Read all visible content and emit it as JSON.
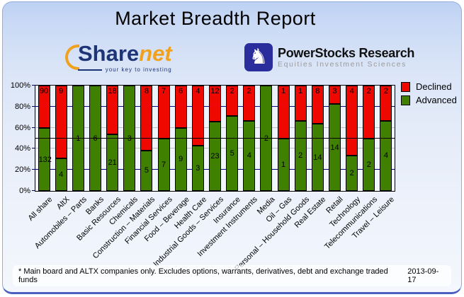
{
  "header": {
    "title": "Market Breadth Report"
  },
  "logos": {
    "sharenet": {
      "word_part1": "Share",
      "word_part2": "net",
      "tagline": "your key to investing"
    },
    "powerstocks": {
      "line1": "PowerStocks  Research",
      "line2": "Equities Investment Sciences",
      "icon": "knight-icon",
      "knight_glyph": "♞"
    }
  },
  "chart_data": {
    "type": "bar",
    "stacked": true,
    "categories": [
      "All share",
      "AltX",
      "Automobiles – Parts",
      "Banks",
      "Basic Resources",
      "Chemicals",
      "Construction – Materials",
      "Financial Services",
      "Food – Beverage",
      "Health Care",
      "Industrial Goods – Services",
      "Insurance",
      "Investment Instruments",
      "Media",
      "Oil – Gas",
      "Personal – Household Goods",
      "Real Estate",
      "Retail",
      "Technology",
      "Telecommunications",
      "Travel – Leisure"
    ],
    "series": [
      {
        "name": "Declined",
        "color": "#ee0800",
        "values": [
          90,
          9,
          0,
          0,
          18,
          0,
          8,
          7,
          6,
          4,
          12,
          2,
          2,
          0,
          1,
          1,
          8,
          3,
          4,
          2,
          2
        ]
      },
      {
        "name": "Advanced",
        "color": "#3f8000",
        "values": [
          132,
          4,
          1,
          6,
          21,
          3,
          5,
          7,
          9,
          3,
          23,
          5,
          4,
          2,
          1,
          2,
          14,
          14,
          2,
          2,
          4
        ]
      }
    ],
    "ylabel": "",
    "xlabel": "",
    "ylim": [
      0,
      100
    ],
    "y_ticks": [
      "0%",
      "20%",
      "40%",
      "60%",
      "80%",
      "100%"
    ],
    "y_tick_values": [
      0,
      20,
      40,
      60,
      80,
      100
    ],
    "gridlines": [
      {
        "pct": 20,
        "color": "#000080"
      },
      {
        "pct": 40,
        "color": "#c0c0c0"
      },
      {
        "pct": 60,
        "color": "#c0c0c0"
      },
      {
        "pct": 80,
        "color": "#000080"
      }
    ],
    "reference_line_pct": 50,
    "legend_position": "top-right",
    "legend": [
      "Declined",
      "Advanced"
    ]
  },
  "footer": {
    "note": "* Main board and ALTX companies only. Excludes options, warrants, derivatives, debt and exchange traded funds",
    "date": "2013-09-17"
  },
  "colors": {
    "declined": "#ee0800",
    "advanced": "#3f8000",
    "grid_major": "#000080",
    "grid_minor": "#c0c0c0",
    "reference_line": "#000000",
    "panel_top": "#bdd1f3",
    "panel_bottom": "#f4f7fd"
  }
}
